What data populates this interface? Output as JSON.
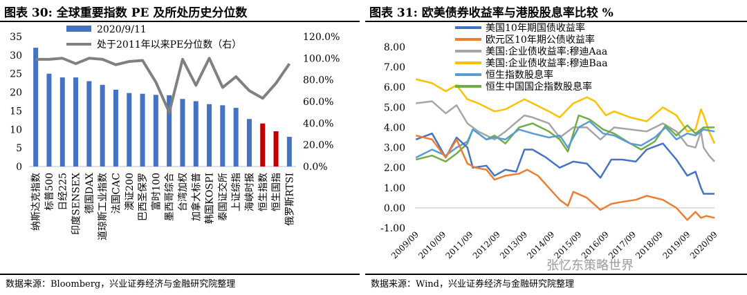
{
  "left": {
    "title": "图表 30: 全球重要指数 PE 及所处历史分位数",
    "source": "数据来源：Bloomberg，兴业证券经济与金融研究院整理"
  },
  "right": {
    "title": "图表 31: 欧美债券收益率与港股股息率比较  %",
    "source": "数据来源：Wind，兴业证券经济与金融研究院整理"
  },
  "watermark": "张忆东策略世界",
  "colors": {
    "blue": "#4472c4",
    "red": "#c00000",
    "gray": "#808080",
    "s1": "#4472c4",
    "s2": "#ed7d31",
    "s3": "#a5a5a5",
    "s4": "#ffc000",
    "s5": "#5b9bd5",
    "s6": "#70ad47"
  },
  "chart_data": [
    {
      "type": "bar",
      "title": "全球重要指数 PE 及所处历史分位数",
      "categories": [
        "纳斯达克指数",
        "标普500",
        "日经225",
        "印度SENSEX",
        "德国DAX",
        "道琼斯工业指数",
        "法国CAC",
        "澳证200",
        "巴西圣保罗",
        "富时100",
        "墨西哥综合",
        "台湾加权",
        "加拿大标普",
        "韩国KOSPI",
        "泰国证交所",
        "上证综指",
        "海峡时报",
        "恒生指数",
        "恒生国指",
        "俄罗斯RTSI"
      ],
      "series": [
        {
          "name": "2020/9/11",
          "axis": "left",
          "values": [
            32,
            25,
            24,
            24,
            23,
            22,
            20.7,
            19.8,
            19.6,
            19.3,
            19.2,
            18.2,
            17.6,
            16.8,
            16.5,
            15.8,
            12.8,
            11.6,
            9.5,
            8
          ]
        },
        {
          "name": "处于2011年以来PE分位数（右）",
          "axis": "right",
          "type": "line",
          "values": [
            99,
            99,
            100,
            95,
            100,
            99,
            94,
            97,
            98,
            78,
            50,
            99,
            75,
            100,
            73,
            83,
            70,
            63,
            77,
            95
          ]
        }
      ],
      "highlight_indices": [
        17,
        18
      ],
      "ylim_left": [
        0,
        35
      ],
      "yticks_left": [
        "0",
        "5",
        "10",
        "15",
        "20",
        "25",
        "30",
        "35"
      ],
      "ylim_right": [
        0,
        120
      ],
      "yticks_right": [
        "0.0%",
        "20.0%",
        "40.0%",
        "60.0%",
        "80.0%",
        "100.0%",
        "120.0%"
      ]
    },
    {
      "type": "line",
      "title": "欧美债券收益率与港股股息率比较",
      "unit": "%",
      "ylim": [
        -1,
        8
      ],
      "yticks": [
        "-1.00",
        "0.00",
        "1.00",
        "2.00",
        "3.00",
        "4.00",
        "5.00",
        "6.00",
        "7.00",
        "8.00"
      ],
      "xticks": [
        "2009/09",
        "2010/09",
        "2011/09",
        "2012/09",
        "2013/09",
        "2014/09",
        "2015/09",
        "2016/09",
        "2017/09",
        "2018/09",
        "2019/09",
        "2020/09"
      ],
      "x_start": 2009.67,
      "x_end": 2020.7,
      "series": [
        {
          "name": "美国10年期国债收益率",
          "x": [
            2009.7,
            2010.3,
            2010.8,
            2011.2,
            2011.6,
            2011.8,
            2012.3,
            2012.6,
            2013.0,
            2013.4,
            2013.7,
            2014.0,
            2014.5,
            2015.0,
            2015.5,
            2016.0,
            2016.5,
            2016.9,
            2017.3,
            2017.8,
            2018.2,
            2018.8,
            2019.3,
            2019.7,
            2020.0,
            2020.2,
            2020.3,
            2020.7
          ],
          "values": [
            3.4,
            3.7,
            2.5,
            3.5,
            3.0,
            2.0,
            2.1,
            1.6,
            1.9,
            1.8,
            2.9,
            2.9,
            2.5,
            2.0,
            2.3,
            2.2,
            1.5,
            2.4,
            2.4,
            2.3,
            2.9,
            3.2,
            2.4,
            1.6,
            1.8,
            1.0,
            0.7,
            0.7
          ]
        },
        {
          "name": "欧元区10年期公债收益率",
          "x": [
            2009.7,
            2010.3,
            2010.8,
            2011.2,
            2011.6,
            2011.9,
            2012.3,
            2012.6,
            2013.0,
            2013.5,
            2013.8,
            2014.2,
            2014.6,
            2015.0,
            2015.3,
            2015.5,
            2016.0,
            2016.5,
            2016.9,
            2017.3,
            2017.8,
            2018.2,
            2018.8,
            2019.3,
            2019.7,
            2020.0,
            2020.2,
            2020.4,
            2020.7
          ],
          "values": [
            3.6,
            3.4,
            2.5,
            3.4,
            2.2,
            2.0,
            1.9,
            1.4,
            1.6,
            1.7,
            1.9,
            1.6,
            1.0,
            0.4,
            0.1,
            0.8,
            0.5,
            -0.1,
            0.2,
            0.3,
            0.4,
            0.6,
            0.4,
            0.0,
            -0.6,
            -0.2,
            -0.5,
            -0.4,
            -0.5
          ]
        },
        {
          "name": "美国:企业债收益率:穆迪Aaa",
          "x": [
            2009.7,
            2010.3,
            2010.8,
            2011.2,
            2011.6,
            2012.0,
            2012.6,
            2013.0,
            2013.7,
            2014.0,
            2014.6,
            2015.0,
            2015.5,
            2016.0,
            2016.5,
            2017.0,
            2017.6,
            2018.2,
            2018.8,
            2019.3,
            2019.7,
            2020.0,
            2020.2,
            2020.3,
            2020.5,
            2020.7
          ],
          "values": [
            5.2,
            5.3,
            4.7,
            5.1,
            4.2,
            3.8,
            3.4,
            3.8,
            4.6,
            4.5,
            4.2,
            3.5,
            4.0,
            4.0,
            3.4,
            4.0,
            3.9,
            3.8,
            4.2,
            3.8,
            3.1,
            3.0,
            3.8,
            3.0,
            2.6,
            2.3
          ]
        },
        {
          "name": "美国:企业债收益率:穆迪Baa",
          "x": [
            2009.7,
            2010.3,
            2010.8,
            2011.2,
            2011.6,
            2012.0,
            2012.6,
            2013.0,
            2013.7,
            2014.0,
            2014.6,
            2015.0,
            2015.5,
            2016.0,
            2016.3,
            2016.7,
            2017.0,
            2017.6,
            2018.2,
            2018.8,
            2019.3,
            2019.7,
            2020.0,
            2020.2,
            2020.3,
            2020.5,
            2020.7
          ],
          "values": [
            6.4,
            6.2,
            5.8,
            6.1,
            5.4,
            5.2,
            4.8,
            4.9,
            5.4,
            5.2,
            4.8,
            4.5,
            5.2,
            5.5,
            5.3,
            4.6,
            4.8,
            4.5,
            4.3,
            5.0,
            4.6,
            3.8,
            3.9,
            4.9,
            4.6,
            3.8,
            3.2
          ]
        },
        {
          "name": "恒生指数股息率",
          "x": [
            2009.7,
            2010.3,
            2010.8,
            2011.2,
            2011.6,
            2011.8,
            2012.3,
            2012.6,
            2013.0,
            2013.5,
            2014.0,
            2014.6,
            2015.0,
            2015.3,
            2015.7,
            2016.1,
            2016.6,
            2017.0,
            2017.6,
            2018.0,
            2018.5,
            2018.9,
            2019.3,
            2019.7,
            2020.0,
            2020.3,
            2020.7
          ],
          "values": [
            2.5,
            2.9,
            2.6,
            3.0,
            3.3,
            3.9,
            3.4,
            3.5,
            3.4,
            3.9,
            3.7,
            3.5,
            3.6,
            3.0,
            4.0,
            4.3,
            3.7,
            3.6,
            3.2,
            3.1,
            3.5,
            4.0,
            3.4,
            3.7,
            3.6,
            3.9,
            3.8
          ]
        },
        {
          "name": "恒生中国国企指数股息率",
          "x": [
            2009.7,
            2010.3,
            2010.8,
            2011.2,
            2011.6,
            2011.8,
            2012.3,
            2012.6,
            2013.0,
            2013.5,
            2014.0,
            2014.6,
            2015.0,
            2015.3,
            2015.7,
            2016.1,
            2016.6,
            2017.0,
            2017.6,
            2018.0,
            2018.5,
            2018.9,
            2019.3,
            2019.7,
            2020.0,
            2020.3,
            2020.7
          ],
          "values": [
            2.4,
            2.6,
            2.3,
            2.7,
            3.2,
            3.9,
            3.4,
            3.6,
            3.2,
            4.0,
            4.2,
            3.8,
            3.4,
            2.8,
            4.6,
            4.4,
            3.9,
            3.7,
            3.2,
            2.9,
            3.3,
            4.1,
            3.6,
            4.1,
            3.7,
            4.0,
            4.0
          ]
        }
      ]
    }
  ]
}
